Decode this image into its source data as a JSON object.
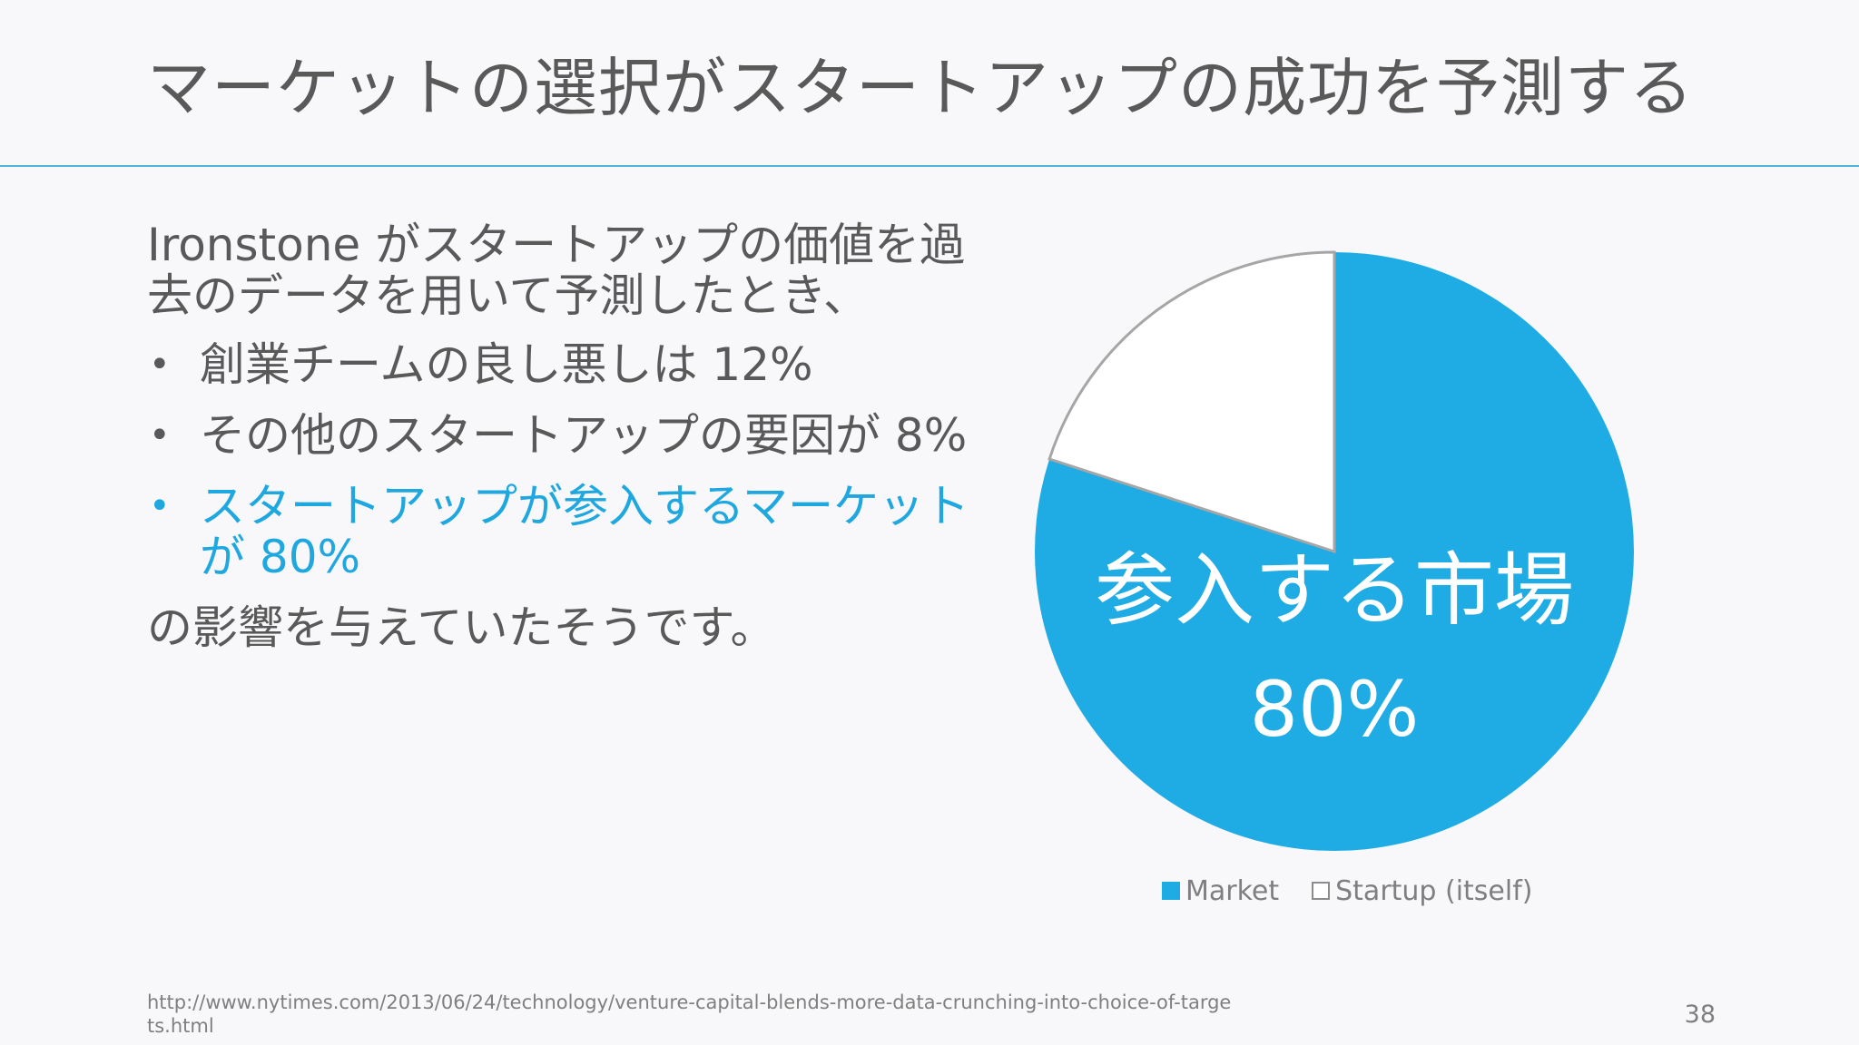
{
  "slide": {
    "title": "マーケットの選択がスタートアップの成功を予測する",
    "intro": "Ironstone がスタートアップの価値を過去のデータを用いて予測したとき、",
    "bullets": [
      {
        "text": "創業チームの良し悪しは 12%",
        "highlight": false
      },
      {
        "text": "その他のスタートアップの要因が 8%",
        "highlight": false
      },
      {
        "text": "スタートアップが参入するマーケットが 80%",
        "highlight": true
      }
    ],
    "bullet_symbol": "•",
    "outro": "の影響を与えていたそうです。",
    "source": "http://www.nytimes.com/2013/06/24/technology/venture-capital-blends-more-data-crunching-into-choice-of-targets.html",
    "page_number": "38"
  },
  "chart_data": {
    "type": "pie",
    "slices": [
      {
        "label": "Market",
        "value": 80,
        "color": "#1fabe3"
      },
      {
        "label": "Startup (itself)",
        "value": 20,
        "color": "#ffffff"
      }
    ],
    "data_label": {
      "line1": "参入する市場",
      "line2": "80%"
    },
    "legend": [
      "Market",
      "Startup (itself)"
    ],
    "legend_position": "bottom",
    "outline_color": "#a6a6a6"
  }
}
